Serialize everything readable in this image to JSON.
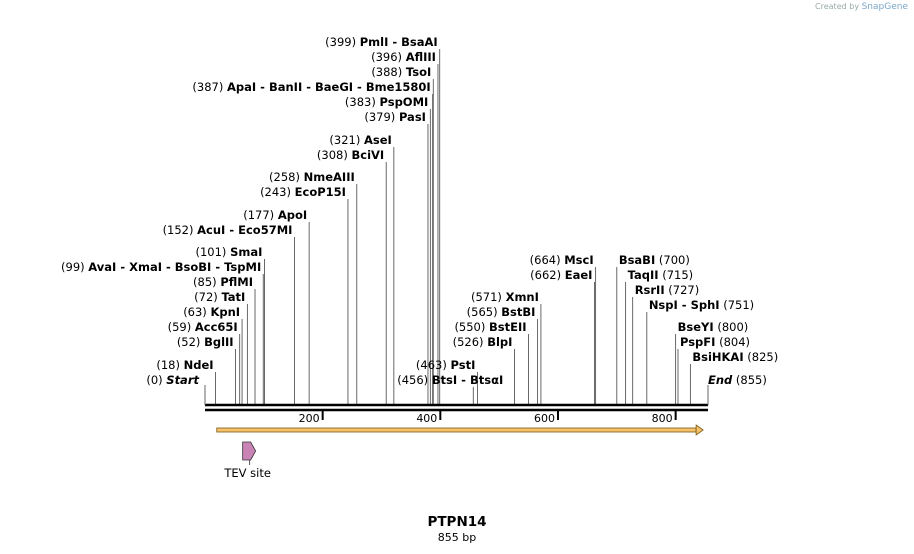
{
  "credit": {
    "prefix": "Created by",
    "brand": "SnapGene"
  },
  "sequence": {
    "name": "PTPN14",
    "length_label": "855 bp",
    "length": 855
  },
  "ticks": [
    200,
    400,
    600,
    800
  ],
  "ends": {
    "start_label": "Start",
    "start_pos": "(0)",
    "end_label": "End",
    "end_pos": "(855)"
  },
  "sites": [
    {
      "pos": 18,
      "names": [
        "NdeI"
      ],
      "side": "left",
      "row": 365
    },
    {
      "pos": 52,
      "names": [
        "BglII"
      ],
      "side": "left",
      "row": 342
    },
    {
      "pos": 59,
      "names": [
        "Acc65I"
      ],
      "side": "left",
      "row": 327
    },
    {
      "pos": 63,
      "names": [
        "KpnI"
      ],
      "side": "left",
      "row": 312
    },
    {
      "pos": 72,
      "names": [
        "TatI"
      ],
      "side": "left",
      "row": 297
    },
    {
      "pos": 85,
      "names": [
        "PflMI"
      ],
      "side": "left",
      "row": 282
    },
    {
      "pos": 99,
      "names": [
        "AvaI",
        "XmaI",
        "BsoBI",
        "TspMI"
      ],
      "side": "left",
      "row": 267
    },
    {
      "pos": 101,
      "names": [
        "SmaI"
      ],
      "side": "left",
      "row": 252
    },
    {
      "pos": 152,
      "names": [
        "AcuI",
        "Eco57MI"
      ],
      "side": "left",
      "row": 230
    },
    {
      "pos": 177,
      "names": [
        "ApoI"
      ],
      "side": "left",
      "row": 215
    },
    {
      "pos": 243,
      "names": [
        "EcoP15I"
      ],
      "side": "left",
      "row": 192
    },
    {
      "pos": 258,
      "names": [
        "NmeAIII"
      ],
      "side": "left",
      "row": 177
    },
    {
      "pos": 308,
      "names": [
        "BciVI"
      ],
      "side": "left",
      "row": 155
    },
    {
      "pos": 321,
      "names": [
        "AseI"
      ],
      "side": "left",
      "row": 140
    },
    {
      "pos": 379,
      "names": [
        "PasI"
      ],
      "side": "left",
      "row": 117
    },
    {
      "pos": 383,
      "names": [
        "PspOMI"
      ],
      "side": "left",
      "row": 102
    },
    {
      "pos": 387,
      "names": [
        "ApaI",
        "BanII",
        "BaeGI",
        "Bme1580I"
      ],
      "side": "left",
      "row": 87
    },
    {
      "pos": 388,
      "names": [
        "TsoI"
      ],
      "side": "left",
      "row": 72
    },
    {
      "pos": 396,
      "names": [
        "AflIII"
      ],
      "side": "left",
      "row": 57
    },
    {
      "pos": 399,
      "names": [
        "PmlI",
        "BsaAI"
      ],
      "side": "left",
      "row": 42
    },
    {
      "pos": 456,
      "names": [
        "BtsI",
        "BtsαI"
      ],
      "side": "right",
      "row": 380
    },
    {
      "pos": 463,
      "names": [
        "PstI"
      ],
      "side": "left",
      "row": 365
    },
    {
      "pos": 526,
      "names": [
        "BlpI"
      ],
      "side": "left",
      "row": 342
    },
    {
      "pos": 550,
      "names": [
        "BstEII"
      ],
      "side": "left",
      "row": 327
    },
    {
      "pos": 565,
      "names": [
        "BstBI"
      ],
      "side": "left",
      "row": 312
    },
    {
      "pos": 571,
      "names": [
        "XmnI"
      ],
      "side": "left",
      "row": 297
    },
    {
      "pos": 662,
      "names": [
        "EaeI"
      ],
      "side": "left",
      "row": 275
    },
    {
      "pos": 664,
      "names": [
        "MscI"
      ],
      "side": "left",
      "row": 260
    },
    {
      "pos": 700,
      "names": [
        "BsaBI"
      ],
      "side": "right",
      "row": 260
    },
    {
      "pos": 715,
      "names": [
        "TaqII"
      ],
      "side": "right",
      "row": 275
    },
    {
      "pos": 727,
      "names": [
        "RsrII"
      ],
      "side": "right",
      "row": 290
    },
    {
      "pos": 751,
      "names": [
        "NspI",
        "SphI"
      ],
      "side": "right",
      "row": 305
    },
    {
      "pos": 800,
      "names": [
        "BseYI"
      ],
      "side": "right",
      "row": 327
    },
    {
      "pos": 804,
      "names": [
        "PspFI"
      ],
      "side": "right",
      "row": 342
    },
    {
      "pos": 825,
      "names": [
        "BsiHKAI"
      ],
      "side": "right",
      "row": 357
    }
  ],
  "feature": {
    "name": "TEV site"
  },
  "colors": {
    "orf_fill": "#f5c26b",
    "orf_stroke": "#7a5a10",
    "tev_fill": "#c983b4"
  }
}
